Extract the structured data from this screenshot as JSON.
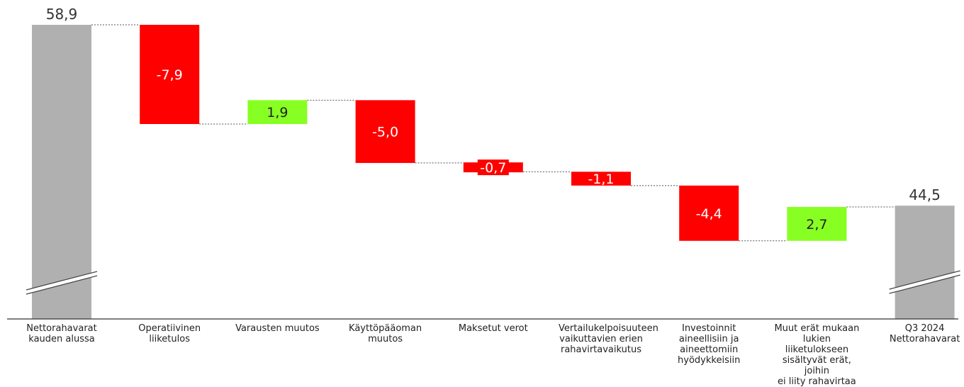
{
  "chart_data": {
    "type": "waterfall",
    "title": "",
    "xlabel": "",
    "ylabel": "",
    "ylim": [
      40,
      59.8
    ],
    "categories": [
      "Nettorahavarat kauden alussa",
      "Operatiivinen liiketulos",
      "Varausten muutos",
      "Käyttöpääoman muutos",
      "Maksetut verot",
      "Vertailukelpoisuuteen vaikuttavien erien rahavirtavaikutus",
      "Investoinnit aineellisiin ja aineettomiin hyödykkeisiin",
      "Muut erät mukaan lukien liiketulokseen sisältyvät erät, joihin ei liity rahavirtaa",
      "Q3 2024 Nettorahavarat"
    ],
    "category_lines": [
      [
        "Nettorahavarat",
        "kauden alussa"
      ],
      [
        "Operatiivinen",
        "liiketulos"
      ],
      [
        "Varausten muutos"
      ],
      [
        "Käyttöpääoman",
        "muutos"
      ],
      [
        "Maksetut verot"
      ],
      [
        "Vertailukelpoisuuteen",
        "vaikuttavien erien",
        "rahavirtavaikutus"
      ],
      [
        "Investoinnit",
        "aineellisiin ja",
        "aineettomiin",
        "hyödykkeisiin"
      ],
      [
        "Muut erät mukaan",
        "lukien liiketulokseen",
        "sisältyvät erät, joihin",
        "ei liity rahavirtaa"
      ],
      [
        "Q3 2024",
        "Nettorahavarat"
      ]
    ],
    "values": [
      58.9,
      -7.9,
      1.9,
      -5.0,
      -0.7,
      -1.1,
      -4.4,
      2.7,
      44.5
    ],
    "kinds": [
      "total",
      "delta",
      "delta",
      "delta",
      "delta",
      "delta",
      "delta",
      "delta",
      "total"
    ],
    "labels": [
      "58,9",
      "-7,9",
      "1,9",
      "-5,0",
      "-0,7",
      "-1,1",
      "-4,4",
      "2,7",
      "44,5"
    ],
    "axis_break": true,
    "colors": {
      "total": "#b0b0b0",
      "decrease": "#ff0000",
      "increase": "#88ff22",
      "connector": "#555555",
      "axis": "#333333"
    }
  }
}
